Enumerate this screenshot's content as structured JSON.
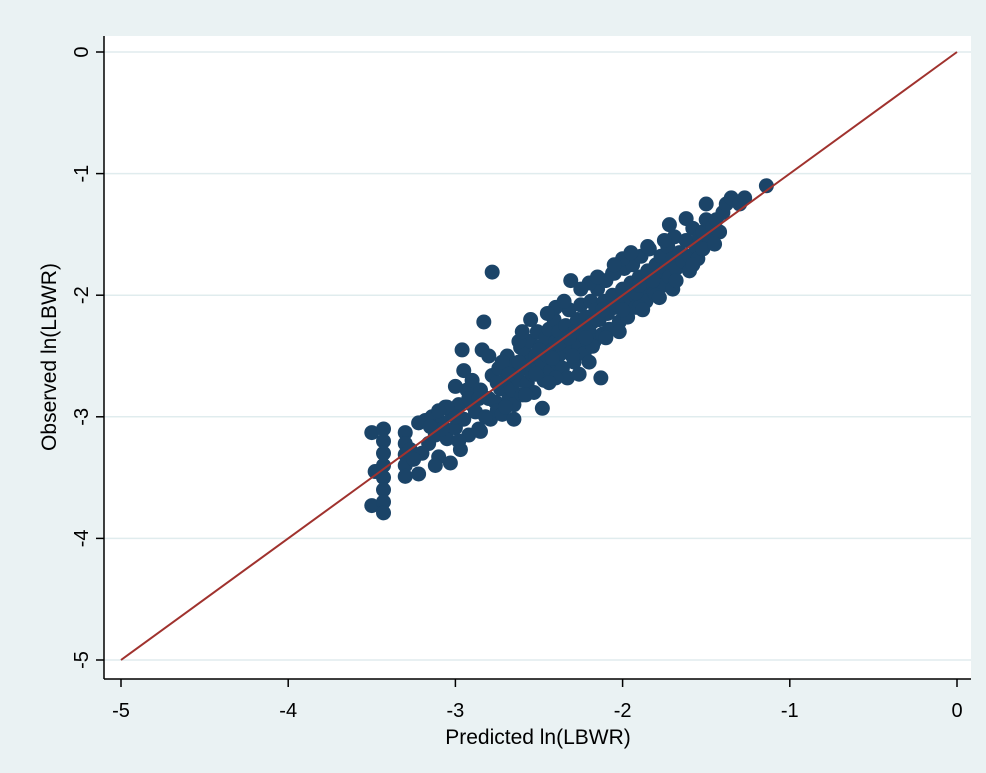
{
  "chart_data": {
    "type": "scatter",
    "title": "",
    "xlabel": "Predicted ln(LBWR)",
    "ylabel": "Observed ln(LBWR)",
    "xlim": [
      -5,
      0
    ],
    "ylim": [
      -5,
      0
    ],
    "xticks": [
      -5,
      -4,
      -3,
      -2,
      -1,
      0
    ],
    "yticks": [
      -5,
      -4,
      -3,
      -2,
      -1,
      0
    ],
    "grid": true,
    "legend": "none",
    "colors": {
      "points": "#1b4468",
      "line": "#a0322e",
      "background": "#eaf2f3",
      "plot_area": "#ffffff",
      "grid": "#e0ecee"
    },
    "series": [
      {
        "kind": "points",
        "points": [
          [
            -3.5,
            -3.13
          ],
          [
            -3.5,
            -3.73
          ],
          [
            -3.48,
            -3.45
          ],
          [
            -3.43,
            -3.1
          ],
          [
            -3.43,
            -3.2
          ],
          [
            -3.43,
            -3.3
          ],
          [
            -3.43,
            -3.4
          ],
          [
            -3.43,
            -3.5
          ],
          [
            -3.43,
            -3.6
          ],
          [
            -3.43,
            -3.7
          ],
          [
            -3.43,
            -3.79
          ],
          [
            -3.3,
            -3.13
          ],
          [
            -3.3,
            -3.22
          ],
          [
            -3.3,
            -3.31
          ],
          [
            -3.3,
            -3.4
          ],
          [
            -3.3,
            -3.49
          ],
          [
            -3.27,
            -3.27
          ],
          [
            -3.22,
            -3.47
          ],
          [
            -3.22,
            -3.05
          ],
          [
            -3.18,
            -3.03
          ],
          [
            -3.16,
            -3.22
          ],
          [
            -3.14,
            -3.0
          ],
          [
            -3.12,
            -3.15
          ],
          [
            -3.1,
            -3.33
          ],
          [
            -3.08,
            -3.05
          ],
          [
            -3.06,
            -2.92
          ],
          [
            -3.05,
            -3.18
          ],
          [
            -3.03,
            -3.38
          ],
          [
            -3.02,
            -2.98
          ],
          [
            -3.0,
            -3.09
          ],
          [
            -2.98,
            -2.9
          ],
          [
            -2.97,
            -3.27
          ],
          [
            -2.95,
            -3.02
          ],
          [
            -2.93,
            -2.78
          ],
          [
            -2.92,
            -3.15
          ],
          [
            -2.9,
            -2.9
          ],
          [
            -2.88,
            -2.96
          ],
          [
            -2.86,
            -3.1
          ],
          [
            -2.85,
            -2.78
          ],
          [
            -2.84,
            -2.45
          ],
          [
            -2.83,
            -2.22
          ],
          [
            -2.8,
            -2.85
          ],
          [
            -2.79,
            -3.02
          ],
          [
            -2.78,
            -2.66
          ],
          [
            -2.76,
            -2.88
          ],
          [
            -2.75,
            -2.95
          ],
          [
            -2.74,
            -2.6
          ],
          [
            -2.73,
            -2.77
          ],
          [
            -2.72,
            -2.98
          ],
          [
            -2.7,
            -2.7
          ],
          [
            -2.69,
            -2.5
          ],
          [
            -2.68,
            -2.85
          ],
          [
            -2.67,
            -2.63
          ],
          [
            -2.66,
            -2.78
          ],
          [
            -2.65,
            -2.9
          ],
          [
            -2.64,
            -2.56
          ],
          [
            -2.62,
            -2.7
          ],
          [
            -2.61,
            -2.43
          ],
          [
            -2.6,
            -2.82
          ],
          [
            -2.59,
            -2.6
          ],
          [
            -2.58,
            -2.48
          ],
          [
            -2.57,
            -2.72
          ],
          [
            -2.56,
            -2.55
          ],
          [
            -2.55,
            -2.38
          ],
          [
            -2.54,
            -2.65
          ],
          [
            -2.53,
            -2.8
          ],
          [
            -2.52,
            -2.5
          ],
          [
            -2.51,
            -2.3
          ],
          [
            -2.5,
            -2.6
          ],
          [
            -2.49,
            -2.42
          ],
          [
            -2.48,
            -2.55
          ],
          [
            -2.47,
            -2.7
          ],
          [
            -2.46,
            -2.35
          ],
          [
            -2.45,
            -2.5
          ],
          [
            -2.44,
            -2.28
          ],
          [
            -2.43,
            -2.62
          ],
          [
            -2.42,
            -2.45
          ],
          [
            -2.41,
            -2.2
          ],
          [
            -2.4,
            -2.38
          ],
          [
            -2.39,
            -2.56
          ],
          [
            -2.38,
            -2.3
          ],
          [
            -2.37,
            -2.48
          ],
          [
            -2.36,
            -2.6
          ],
          [
            -2.35,
            -2.4
          ],
          [
            -2.34,
            -2.25
          ],
          [
            -2.33,
            -2.42
          ],
          [
            -2.32,
            -2.12
          ],
          [
            -2.3,
            -2.32
          ],
          [
            -2.29,
            -2.55
          ],
          [
            -2.28,
            -2.36
          ],
          [
            -2.27,
            -2.2
          ],
          [
            -2.26,
            -2.42
          ],
          [
            -2.25,
            -2.08
          ],
          [
            -2.24,
            -2.28
          ],
          [
            -2.23,
            -2.48
          ],
          [
            -2.22,
            -2.18
          ],
          [
            -2.2,
            -2.3
          ],
          [
            -2.19,
            -2.05
          ],
          [
            -2.18,
            -2.22
          ],
          [
            -2.17,
            -2.38
          ],
          [
            -2.16,
            -2.12
          ],
          [
            -2.15,
            -1.95
          ],
          [
            -2.14,
            -2.2
          ],
          [
            -2.12,
            -2.32
          ],
          [
            -2.11,
            -2.05
          ],
          [
            -2.1,
            -1.88
          ],
          [
            -2.09,
            -2.15
          ],
          [
            -2.08,
            -2.28
          ],
          [
            -2.06,
            -2.0
          ],
          [
            -2.05,
            -1.82
          ],
          [
            -2.04,
            -2.1
          ],
          [
            -2.02,
            -2.22
          ],
          [
            -2.0,
            -1.95
          ],
          [
            -1.99,
            -1.78
          ],
          [
            -1.98,
            -2.05
          ],
          [
            -1.97,
            -2.18
          ],
          [
            -1.95,
            -1.9
          ],
          [
            -1.94,
            -1.75
          ],
          [
            -1.93,
            -2.0
          ],
          [
            -1.92,
            -2.1
          ],
          [
            -1.9,
            -1.85
          ],
          [
            -1.89,
            -1.68
          ],
          [
            -1.88,
            -1.95
          ],
          [
            -1.86,
            -2.05
          ],
          [
            -1.85,
            -1.8
          ],
          [
            -1.84,
            -1.62
          ],
          [
            -1.82,
            -1.9
          ],
          [
            -1.81,
            -1.98
          ],
          [
            -1.8,
            -1.75
          ],
          [
            -1.78,
            -1.85
          ],
          [
            -1.77,
            -1.68
          ],
          [
            -1.76,
            -1.92
          ],
          [
            -1.74,
            -1.78
          ],
          [
            -1.73,
            -1.6
          ],
          [
            -1.72,
            -1.85
          ],
          [
            -1.7,
            -1.7
          ],
          [
            -1.69,
            -1.52
          ],
          [
            -1.68,
            -1.78
          ],
          [
            -1.66,
            -1.65
          ],
          [
            -1.64,
            -1.72
          ],
          [
            -1.62,
            -1.55
          ],
          [
            -1.6,
            -1.68
          ],
          [
            -1.58,
            -1.45
          ],
          [
            -1.56,
            -1.6
          ],
          [
            -1.54,
            -1.52
          ],
          [
            -1.52,
            -1.48
          ],
          [
            -1.5,
            -1.38
          ],
          [
            -1.48,
            -1.55
          ],
          [
            -1.46,
            -1.44
          ],
          [
            -1.44,
            -1.38
          ],
          [
            -1.42,
            -1.48
          ],
          [
            -1.4,
            -1.32
          ],
          [
            -1.38,
            -1.25
          ],
          [
            -1.35,
            -1.2
          ],
          [
            -1.3,
            -1.25
          ],
          [
            -1.27,
            -1.2
          ],
          [
            -1.14,
            -1.1
          ],
          [
            -1.62,
            -1.37
          ],
          [
            -1.5,
            -1.25
          ],
          [
            -1.72,
            -1.42
          ],
          [
            -2.78,
            -1.81
          ],
          [
            -2.95,
            -2.62
          ],
          [
            -2.48,
            -2.93
          ],
          [
            -2.13,
            -2.68
          ],
          [
            -2.33,
            -2.68
          ],
          [
            -2.31,
            -1.88
          ],
          [
            -2.26,
            -2.65
          ],
          [
            -2.62,
            -2.38
          ],
          [
            -2.06,
            -1.82
          ],
          [
            -2.4,
            -2.68
          ],
          [
            -2.72,
            -2.55
          ],
          [
            -2.92,
            -2.85
          ],
          [
            -3.05,
            -2.92
          ],
          [
            -2.85,
            -3.12
          ],
          [
            -2.65,
            -3.02
          ],
          [
            -2.2,
            -2.55
          ],
          [
            -2.1,
            -2.35
          ],
          [
            -1.9,
            -2.1
          ],
          [
            -1.8,
            -2.0
          ],
          [
            -1.7,
            -1.95
          ],
          [
            -1.6,
            -1.8
          ],
          [
            -1.55,
            -1.7
          ],
          [
            -2.0,
            -1.7
          ],
          [
            -2.2,
            -1.9
          ],
          [
            -2.4,
            -2.1
          ],
          [
            -2.6,
            -2.3
          ],
          [
            -2.8,
            -2.5
          ],
          [
            -3.0,
            -2.75
          ],
          [
            -3.1,
            -2.95
          ],
          [
            -2.55,
            -2.2
          ],
          [
            -2.45,
            -2.15
          ],
          [
            -2.35,
            -2.05
          ],
          [
            -2.25,
            -1.95
          ],
          [
            -2.15,
            -1.85
          ],
          [
            -2.05,
            -1.75
          ],
          [
            -1.95,
            -1.65
          ],
          [
            -1.85,
            -1.6
          ],
          [
            -1.75,
            -1.55
          ],
          [
            -3.2,
            -3.3
          ],
          [
            -3.12,
            -3.4
          ],
          [
            -2.98,
            -3.2
          ],
          [
            -2.82,
            -3.0
          ],
          [
            -2.7,
            -2.92
          ],
          [
            -2.58,
            -2.82
          ],
          [
            -2.44,
            -2.72
          ],
          [
            -2.3,
            -2.5
          ],
          [
            -2.18,
            -2.42
          ],
          [
            -2.02,
            -2.3
          ],
          [
            -1.88,
            -2.12
          ],
          [
            -1.78,
            -2.02
          ],
          [
            -1.68,
            -1.88
          ],
          [
            -1.58,
            -1.75
          ],
          [
            -1.52,
            -1.62
          ],
          [
            -1.45,
            -1.58
          ],
          [
            -2.9,
            -2.7
          ],
          [
            -2.75,
            -2.72
          ],
          [
            -2.62,
            -2.55
          ],
          [
            -2.5,
            -2.45
          ],
          [
            -2.38,
            -2.4
          ],
          [
            -2.28,
            -2.3
          ],
          [
            -2.15,
            -2.2
          ],
          [
            -2.03,
            -2.08
          ],
          [
            -1.92,
            -1.98
          ],
          [
            -1.82,
            -1.88
          ],
          [
            -3.0,
            -3.0
          ],
          [
            -3.08,
            -3.1
          ],
          [
            -2.86,
            -2.85
          ],
          [
            -2.68,
            -2.65
          ],
          [
            -2.52,
            -2.65
          ],
          [
            -2.42,
            -2.52
          ],
          [
            -2.32,
            -2.35
          ],
          [
            -2.22,
            -2.35
          ],
          [
            -2.12,
            -2.12
          ],
          [
            -2.0,
            -2.12
          ],
          [
            -1.9,
            -1.92
          ],
          [
            -3.15,
            -3.08
          ],
          [
            -3.25,
            -3.35
          ],
          [
            -2.96,
            -2.45
          ]
        ]
      },
      {
        "kind": "line",
        "name": "",
        "x": [
          -5,
          0
        ],
        "y": [
          -5,
          0
        ]
      }
    ]
  }
}
